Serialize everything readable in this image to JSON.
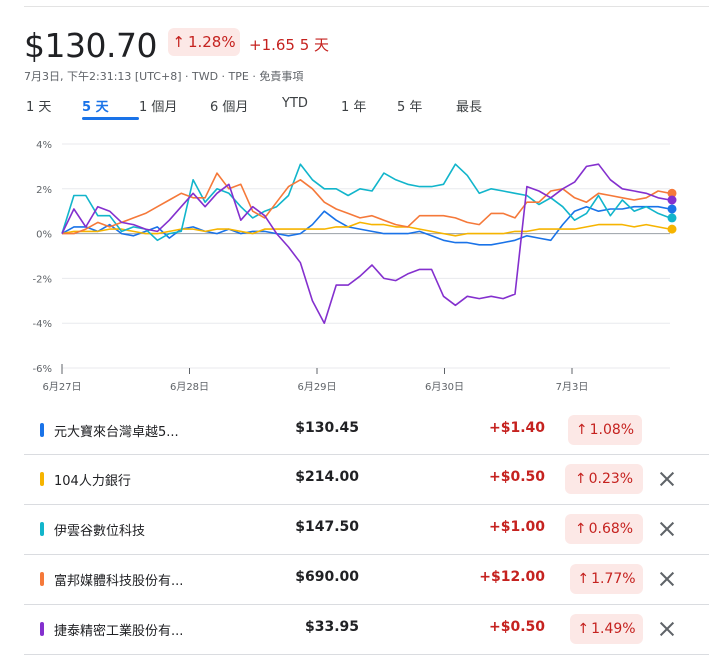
{
  "header": {
    "price": "$130.70",
    "change_pct": "1.28%",
    "change_abs": "+1.65 5 天",
    "meta": "7月3日, 下午2:31:13 [UTC+8] · TWD · TPE · 免責事項"
  },
  "tabs": [
    {
      "label": "1 天"
    },
    {
      "label": "5 天"
    },
    {
      "label": "1 個月"
    },
    {
      "label": "6 個月"
    },
    {
      "label": "YTD"
    },
    {
      "label": "1 年"
    },
    {
      "label": "5 年"
    },
    {
      "label": "最長"
    }
  ],
  "active_tab": "5 天",
  "chart_data": {
    "type": "line",
    "y_ticks": [
      "4%",
      "2%",
      "0%",
      "-2%",
      "-4%",
      "-6%"
    ],
    "ylim": [
      -6,
      4
    ],
    "x_labels": [
      "6月27日",
      "6月28日",
      "6月29日",
      "6月30日",
      "7月3日"
    ],
    "grid": true,
    "series": [
      {
        "name": "元大寶來台灣卓越5...",
        "color": "#1a73e8",
        "values": [
          0,
          0.3,
          0.3,
          0.1,
          0.4,
          0,
          -0.1,
          0.1,
          0.3,
          -0.2,
          0.2,
          0.3,
          0.1,
          0,
          0.2,
          0,
          0.1,
          0.1,
          0,
          -0.1,
          0,
          0.4,
          1,
          0.6,
          0.3,
          0.2,
          0.1,
          0,
          0,
          0,
          0.1,
          -0.1,
          -0.3,
          -0.4,
          -0.4,
          -0.5,
          -0.5,
          -0.4,
          -0.3,
          -0.1,
          -0.2,
          -0.3,
          0.4,
          1,
          1.2,
          1,
          1.1,
          1.1,
          1.2,
          1.2,
          1.2,
          1.1
        ]
      },
      {
        "name": "104人力銀行",
        "color": "#f6b400",
        "values": [
          0,
          0.1,
          0.1,
          0.1,
          0.2,
          0.2,
          0.1,
          0,
          0,
          0.1,
          0.2,
          0.2,
          0.1,
          0.2,
          0.2,
          0.1,
          0,
          0.2,
          0.2,
          0.2,
          0.2,
          0.2,
          0.2,
          0.3,
          0.3,
          0.5,
          0.4,
          0.4,
          0.3,
          0.3,
          0.2,
          0.1,
          0,
          -0.1,
          0,
          0,
          0,
          0,
          0.1,
          0.1,
          0.2,
          0.2,
          0.2,
          0.2,
          0.3,
          0.4,
          0.4,
          0.4,
          0.3,
          0.4,
          0.3,
          0.2
        ]
      },
      {
        "name": "伊雲谷數位科技",
        "color": "#12b5cb",
        "values": [
          0,
          1.7,
          1.7,
          0.8,
          0.8,
          0.1,
          0.3,
          0.2,
          -0.3,
          0,
          0.1,
          2.4,
          1.4,
          2,
          1.8,
          1.2,
          0.7,
          1,
          1.2,
          1.7,
          3.1,
          2.4,
          2,
          2,
          1.7,
          2,
          1.9,
          2.7,
          2.4,
          2.2,
          2.1,
          2.1,
          2.2,
          3.1,
          2.6,
          1.8,
          2,
          1.9,
          1.8,
          1.7,
          1.3,
          1.6,
          1.2,
          0.6,
          0.9,
          1.7,
          0.8,
          1.5,
          1,
          1.2,
          0.9,
          0.7
        ]
      },
      {
        "name": "富邦媒體科技股份有...",
        "color": "#f5793a",
        "values": [
          0,
          0,
          0.2,
          0.5,
          0.3,
          0.5,
          0.7,
          0.9,
          1.2,
          1.5,
          1.8,
          1.6,
          1.6,
          2.7,
          2,
          2.2,
          1,
          0.7,
          1.4,
          2.1,
          2.4,
          2,
          1.4,
          1.1,
          0.9,
          0.7,
          0.8,
          0.6,
          0.4,
          0.3,
          0.8,
          0.8,
          0.8,
          0.7,
          0.5,
          0.4,
          0.9,
          0.9,
          0.7,
          1.4,
          1.4,
          1.9,
          2,
          1.6,
          1.4,
          1.8,
          1.7,
          1.6,
          1.5,
          1.6,
          1.9,
          1.8
        ]
      },
      {
        "name": "捷泰精密工業股份有...",
        "color": "#8430ce",
        "values": [
          0,
          1.1,
          0.3,
          1.2,
          1,
          0.5,
          0.4,
          0.2,
          0.1,
          0.6,
          1.2,
          1.8,
          1.2,
          1.8,
          2.2,
          0.6,
          1.2,
          0.8,
          0,
          -0.6,
          -1.3,
          -3,
          -4,
          -2.3,
          -2.3,
          -1.9,
          -1.4,
          -2,
          -2.1,
          -1.8,
          -1.6,
          -1.6,
          -2.8,
          -3.2,
          -2.8,
          -2.9,
          -2.8,
          -2.9,
          -2.7,
          2.1,
          1.9,
          1.6,
          2,
          2.3,
          3,
          3.1,
          2.4,
          2,
          1.9,
          1.8,
          1.6,
          1.5
        ]
      }
    ]
  },
  "rows": [
    {
      "name": "元大寶來台灣卓越5...",
      "price": "$130.45",
      "change": "+$1.40",
      "pct": "1.08%",
      "color": "#1a73e8",
      "closable": false
    },
    {
      "name": "104人力銀行",
      "price": "$214.00",
      "change": "+$0.50",
      "pct": "0.23%",
      "color": "#f6b400",
      "closable": true
    },
    {
      "name": "伊雲谷數位科技",
      "price": "$147.50",
      "change": "+$1.00",
      "pct": "0.68%",
      "color": "#12b5cb",
      "closable": true
    },
    {
      "name": "富邦媒體科技股份有...",
      "price": "$690.00",
      "change": "+$12.00",
      "pct": "1.77%",
      "color": "#f5793a",
      "closable": true
    },
    {
      "name": "捷泰精密工業股份有...",
      "price": "$33.95",
      "change": "+$0.50",
      "pct": "1.49%",
      "color": "#8430ce",
      "closable": true
    }
  ]
}
